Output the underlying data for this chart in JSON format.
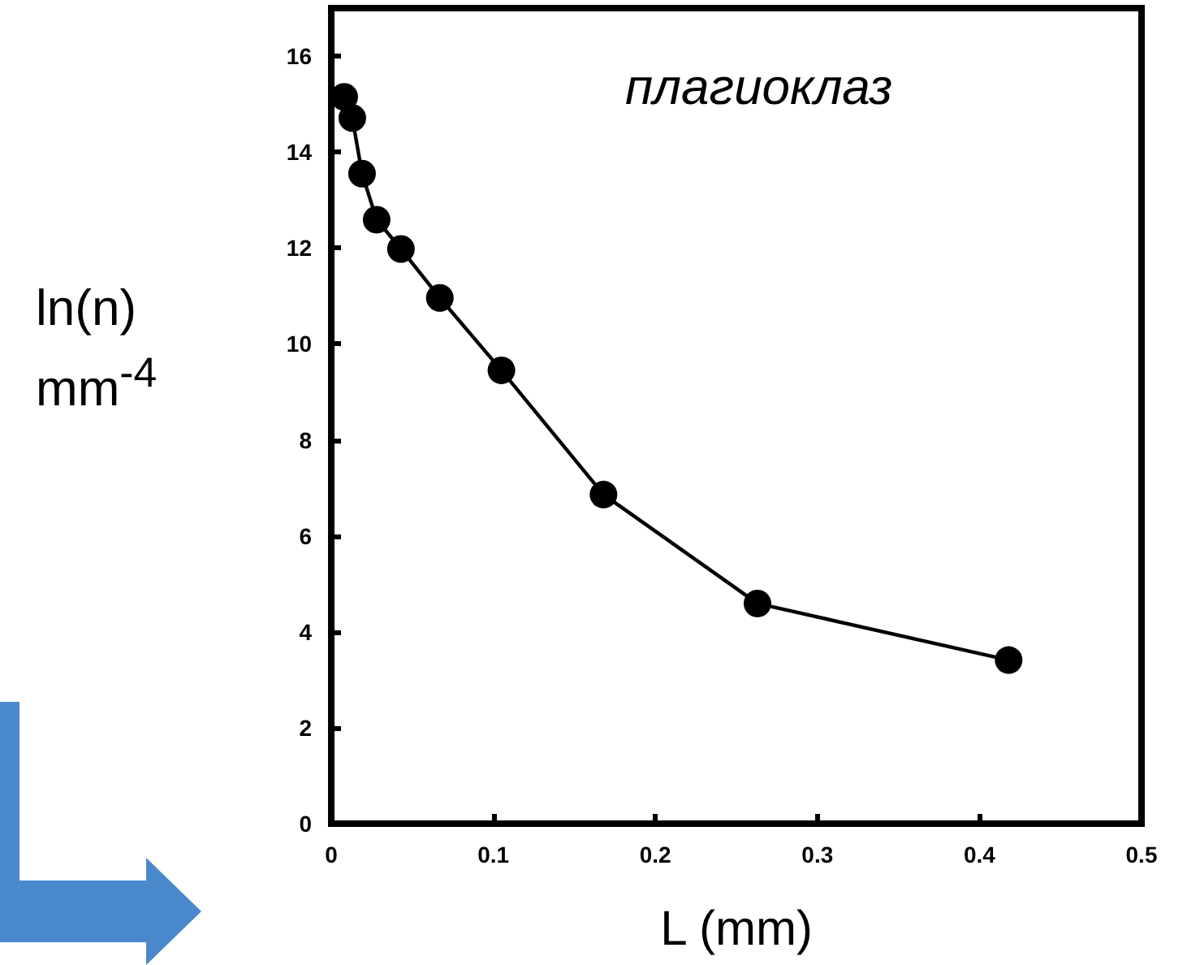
{
  "chart_data": {
    "type": "line",
    "xlabel": "L (mm)",
    "ylabel": "ln(n) mm$^{-4}$",
    "annotations": [
      "плагиоклаз"
    ],
    "x": [
      0.008,
      0.013,
      0.019,
      0.028,
      0.043,
      0.067,
      0.105,
      0.168,
      0.263,
      0.418
    ],
    "series": [
      {
        "color": "#000000",
        "values": [
          15.15,
          14.71,
          13.55,
          12.59,
          11.98,
          10.96,
          9.45,
          6.86,
          4.59,
          3.41
        ]
      }
    ],
    "xlim": [
      0,
      0.5
    ],
    "xticks": [
      0,
      0.1,
      0.2,
      0.3,
      0.4,
      0.5
    ],
    "ylim": [
      0,
      17
    ],
    "yticks": [
      0,
      2,
      4,
      6,
      8,
      10,
      12,
      14,
      16
    ],
    "grid": false,
    "marker": "circle",
    "line_style": "solid"
  }
}
